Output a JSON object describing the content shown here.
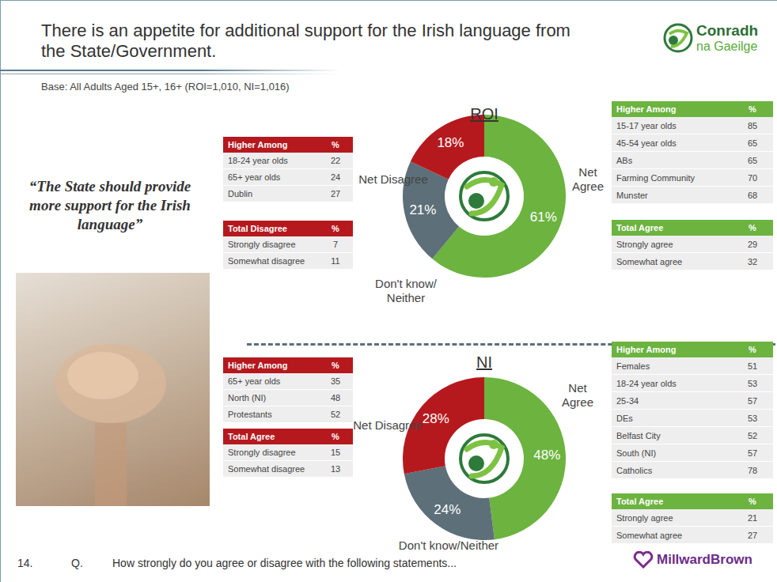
{
  "title": "There is an appetite for additional support for the Irish language from the State/Government.",
  "brand": [
    "Conradh",
    "na Gaeilge"
  ],
  "base": "Base: All Adults Aged 15+, 16+ (ROI=1,010, NI=1,016)",
  "quote": "“The State should provide more support for the Irish language”",
  "footer": {
    "page": "14.",
    "prefix": "Q.",
    "question": "How strongly do you agree or disagree with the following statements...",
    "brand": "MillwardBrown"
  },
  "chart_data": [
    {
      "type": "pie",
      "title": "ROI",
      "categories": [
        "Net Agree",
        "Don't know/ Neither",
        "Net Disagree"
      ],
      "values": [
        61,
        21,
        18
      ],
      "value_labels": [
        "61%",
        "21%",
        "18%"
      ],
      "colors": [
        "#6cb33f",
        "#5d6f78",
        "#b5191e"
      ],
      "data_labels": true
    },
    {
      "type": "pie",
      "title": "NI",
      "categories": [
        "Net Agree",
        "Don't know/Neither",
        "Net Disagree"
      ],
      "values": [
        48,
        24,
        28
      ],
      "value_labels": [
        "48%",
        "24%",
        "28%"
      ],
      "colors": [
        "#6cb33f",
        "#5d6f78",
        "#b5191e"
      ],
      "data_labels": true
    }
  ],
  "panels": [
    {
      "left_tables": [
        {
          "header": [
            "Higher Among",
            "%"
          ],
          "rows": [
            [
              "18-24 year olds",
              22
            ],
            [
              "65+ year olds",
              24
            ],
            [
              "Dublin",
              27
            ]
          ]
        },
        {
          "header": [
            "Total Disagree",
            "%"
          ],
          "rows": [
            [
              "Strongly disagree",
              7
            ],
            [
              "Somewhat disagree",
              11
            ]
          ]
        }
      ],
      "right_tables": [
        {
          "header": [
            "Higher Among",
            "%"
          ],
          "rows": [
            [
              "15-17 year olds",
              85
            ],
            [
              "45-54 year olds",
              65
            ],
            [
              "ABs",
              65
            ],
            [
              "Farming Community",
              70
            ],
            [
              "Munster",
              68
            ]
          ]
        },
        {
          "header": [
            "Total Agree",
            "%"
          ],
          "rows": [
            [
              "Strongly agree",
              29
            ],
            [
              "Somewhat agree",
              32
            ]
          ]
        }
      ]
    },
    {
      "left_tables": [
        {
          "header": [
            "Higher Among",
            "%"
          ],
          "rows": [
            [
              "65+ year olds",
              35
            ],
            [
              "North (NI)",
              48
            ],
            [
              "Protestants",
              52
            ]
          ]
        },
        {
          "header": [
            "Total Agree",
            "%"
          ],
          "rows": [
            [
              "Strongly disagree",
              15
            ],
            [
              "Somewhat disagree",
              13
            ]
          ]
        }
      ],
      "right_tables": [
        {
          "header": [
            "Higher Among",
            "%"
          ],
          "rows": [
            [
              "Females",
              51
            ],
            [
              "18-24 year olds",
              53
            ],
            [
              "25-34",
              57
            ],
            [
              "DEs",
              53
            ],
            [
              "Belfast City",
              52
            ],
            [
              "South (NI)",
              57
            ],
            [
              "Catholics",
              78
            ]
          ]
        },
        {
          "header": [
            "Total Agree",
            "%"
          ],
          "rows": [
            [
              "Strongly agree",
              21
            ],
            [
              "Somewhat agree",
              27
            ]
          ]
        }
      ]
    }
  ]
}
